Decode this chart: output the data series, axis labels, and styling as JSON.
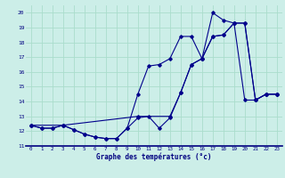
{
  "title": "Graphe des températures (°c)",
  "background_color": "#cceee8",
  "grid_color": "#aaddcc",
  "line_color": "#00008b",
  "xlim": [
    -0.5,
    23.5
  ],
  "ylim": [
    11,
    20.5
  ],
  "xticks": [
    0,
    1,
    2,
    3,
    4,
    5,
    6,
    7,
    8,
    9,
    10,
    11,
    12,
    13,
    14,
    15,
    16,
    17,
    18,
    19,
    20,
    21,
    22,
    23
  ],
  "yticks": [
    11,
    12,
    13,
    14,
    15,
    16,
    17,
    18,
    19,
    20
  ],
  "line1_x": [
    0,
    1,
    2,
    3,
    4,
    5,
    6,
    7,
    8,
    9,
    10,
    11,
    12,
    13,
    14,
    15,
    16,
    17,
    18,
    19,
    20,
    21,
    22,
    23
  ],
  "line1_y": [
    12.4,
    12.2,
    12.2,
    12.4,
    12.1,
    11.8,
    11.6,
    11.5,
    11.5,
    12.2,
    14.5,
    16.4,
    16.5,
    16.9,
    18.4,
    18.4,
    16.9,
    20.0,
    19.5,
    19.3,
    14.1,
    14.1,
    14.5,
    14.5
  ],
  "line2_x": [
    0,
    1,
    2,
    3,
    4,
    5,
    6,
    7,
    8,
    9,
    10,
    11,
    12,
    13,
    14,
    15,
    16,
    17,
    18,
    19,
    20,
    21,
    22,
    23
  ],
  "line2_y": [
    12.4,
    12.2,
    12.2,
    12.4,
    12.1,
    11.8,
    11.6,
    11.5,
    11.5,
    12.2,
    12.9,
    13.0,
    12.2,
    12.9,
    14.6,
    16.5,
    16.9,
    18.4,
    18.5,
    19.3,
    19.3,
    14.1,
    14.5,
    14.5
  ],
  "line3_x": [
    0,
    3,
    10,
    13,
    14,
    15,
    16,
    17,
    18,
    19,
    20,
    21,
    22,
    23
  ],
  "line3_y": [
    12.4,
    12.4,
    13.0,
    13.0,
    14.6,
    16.5,
    16.9,
    18.4,
    18.5,
    19.3,
    19.3,
    14.1,
    14.5,
    14.5
  ]
}
